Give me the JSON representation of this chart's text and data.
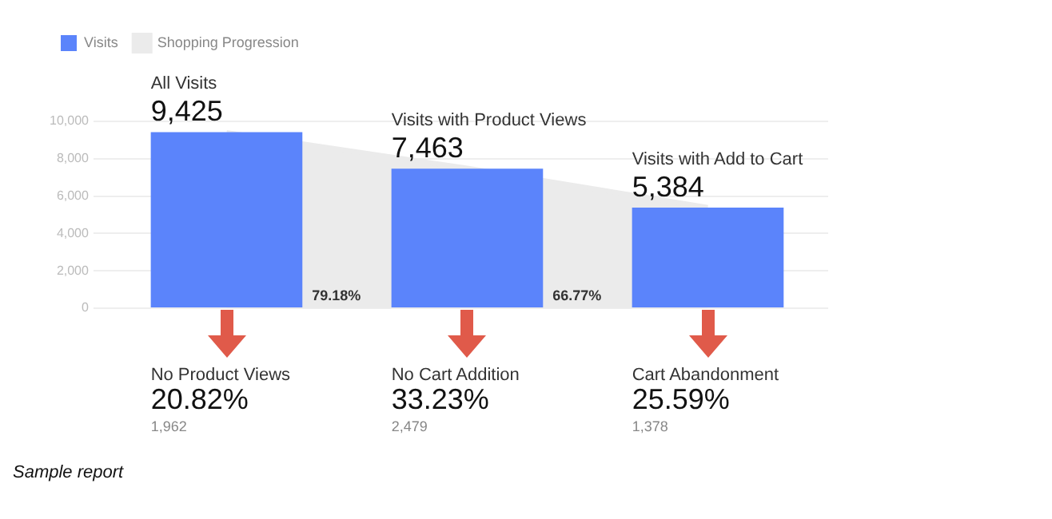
{
  "chart_data": {
    "type": "bar",
    "categories": [
      "All Visits",
      "Visits with Product Views",
      "Visits with Add to Cart"
    ],
    "series": [
      {
        "name": "Visits",
        "color": "#5b84fb",
        "values": [
          9425,
          7463,
          5384
        ],
        "value_labels": [
          "9,425",
          "7,463",
          "5,384"
        ]
      },
      {
        "name": "Shopping Progression",
        "type": "area",
        "color": "#ebebeb",
        "values": [
          9400,
          7500,
          5400
        ]
      }
    ],
    "ylim": [
      0,
      10000
    ],
    "yticks": [
      0,
      {
        "value": 2000,
        "label": "2,000"
      },
      {
        "value": 4000,
        "label": "4,000"
      },
      {
        "value": 6000,
        "label": "6,000"
      },
      {
        "value": 8000,
        "label": "8,000"
      },
      {
        "value": 10000,
        "label": "10,000"
      }
    ],
    "grid": "y",
    "legend": "top left",
    "tick_labels": "y",
    "annotations": [
      "79.18%",
      "66.77%",
      "No Product Views",
      "20.82%",
      "1,962",
      "No Cart Addition",
      "33.23%",
      "2,479",
      "Cart Abandonment",
      "25.59%",
      "1,378",
      "Sample report"
    ]
  }
}
